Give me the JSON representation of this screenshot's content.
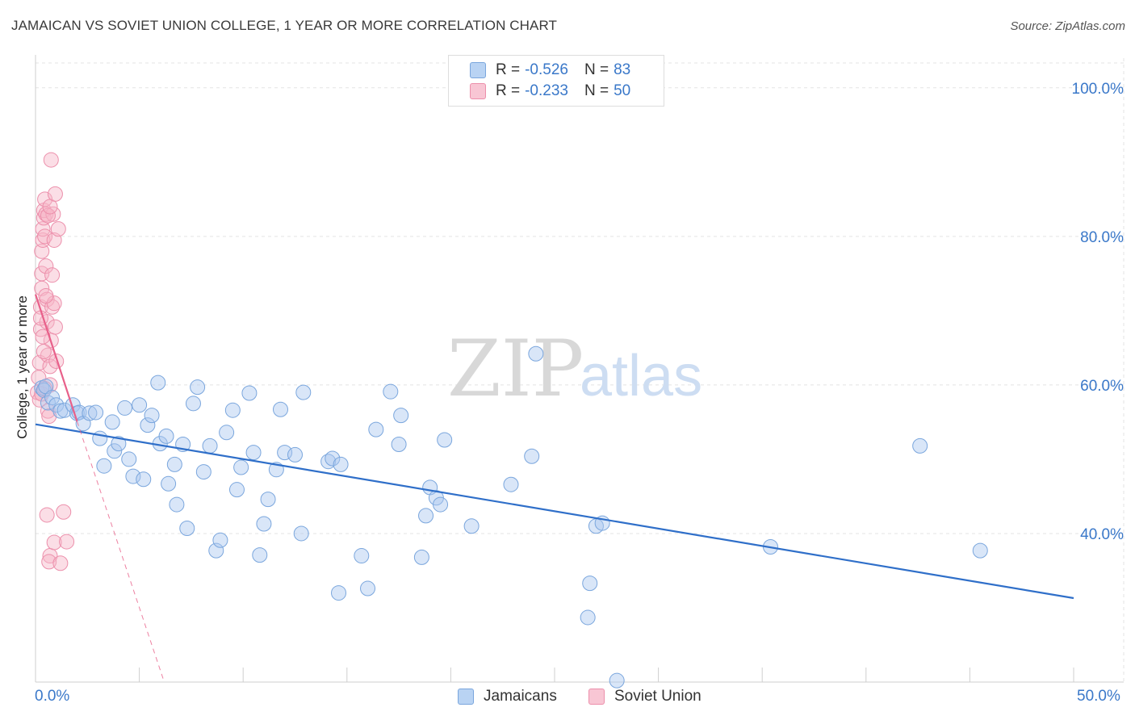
{
  "title": "JAMAICAN VS SOVIET UNION COLLEGE, 1 YEAR OR MORE CORRELATION CHART",
  "source": "Source: ZipAtlas.com",
  "watermark": {
    "zip": "ZIP",
    "atlas": "atlas"
  },
  "colors": {
    "blue_fill": "#aac8f0",
    "blue_stroke": "#7aa6dd",
    "blue_line": "#2f6fc9",
    "pink_fill": "#f6b6c8",
    "pink_stroke": "#ec8fab",
    "pink_line": "#e8608a",
    "grid": "#e3e3e3",
    "tick_text": "#3a78c9"
  },
  "legend_top": {
    "rows": [
      {
        "r_label": "R = ",
        "r_value": "-0.526",
        "n_label": "N = ",
        "n_value": "83"
      },
      {
        "r_label": "R = ",
        "r_value": "-0.233",
        "n_label": "N = ",
        "n_value": "50"
      }
    ]
  },
  "chart_data": {
    "type": "scatter",
    "title": "JAMAICAN VS SOVIET UNION COLLEGE, 1 YEAR OR MORE CORRELATION CHART",
    "xlabel": "",
    "ylabel": "College, 1 year or more",
    "xlim": [
      0,
      50
    ],
    "ylim": [
      20,
      104
    ],
    "x_tick_labels": [
      "0.0%",
      "50.0%"
    ],
    "y_ticks": [
      40,
      60,
      80,
      100
    ],
    "y_tick_labels": [
      "40.0%",
      "60.0%",
      "80.0%",
      "100.0%"
    ],
    "grid": true,
    "legend": [
      "Jamaicans",
      "Soviet Union"
    ],
    "series": [
      {
        "name": "Jamaicans",
        "R": -0.526,
        "N": 83,
        "trend": {
          "x": [
            0,
            50
          ],
          "y": [
            54.7,
            31.3
          ]
        },
        "points": [
          [
            0.3,
            59.6
          ],
          [
            0.4,
            59.3
          ],
          [
            0.5,
            59.8
          ],
          [
            0.6,
            57.6
          ],
          [
            0.8,
            58.3
          ],
          [
            1.0,
            57.3
          ],
          [
            1.2,
            56.5
          ],
          [
            1.4,
            56.6
          ],
          [
            1.8,
            57.3
          ],
          [
            2.0,
            56.2
          ],
          [
            2.1,
            56.3
          ],
          [
            2.3,
            54.8
          ],
          [
            2.6,
            56.2
          ],
          [
            2.9,
            56.3
          ],
          [
            3.1,
            52.8
          ],
          [
            3.3,
            49.1
          ],
          [
            3.7,
            55.0
          ],
          [
            3.8,
            51.1
          ],
          [
            4.0,
            52.1
          ],
          [
            4.3,
            56.9
          ],
          [
            4.5,
            50.0
          ],
          [
            4.7,
            47.7
          ],
          [
            5.0,
            57.3
          ],
          [
            5.2,
            47.3
          ],
          [
            5.4,
            54.6
          ],
          [
            5.6,
            55.9
          ],
          [
            5.9,
            60.3
          ],
          [
            6.0,
            52.1
          ],
          [
            6.3,
            53.1
          ],
          [
            6.4,
            46.7
          ],
          [
            6.7,
            49.3
          ],
          [
            6.8,
            43.9
          ],
          [
            7.1,
            52.0
          ],
          [
            7.3,
            40.7
          ],
          [
            7.6,
            57.5
          ],
          [
            7.8,
            59.7
          ],
          [
            8.1,
            48.3
          ],
          [
            8.4,
            51.8
          ],
          [
            8.7,
            37.7
          ],
          [
            8.9,
            39.1
          ],
          [
            9.2,
            53.6
          ],
          [
            9.5,
            56.6
          ],
          [
            9.7,
            45.9
          ],
          [
            9.9,
            48.9
          ],
          [
            10.3,
            58.9
          ],
          [
            10.5,
            50.9
          ],
          [
            10.8,
            37.1
          ],
          [
            11.0,
            41.3
          ],
          [
            11.2,
            44.6
          ],
          [
            11.6,
            48.6
          ],
          [
            11.8,
            56.7
          ],
          [
            12.0,
            50.9
          ],
          [
            12.5,
            50.6
          ],
          [
            12.8,
            40.0
          ],
          [
            12.9,
            59.0
          ],
          [
            14.1,
            49.7
          ],
          [
            14.3,
            50.1
          ],
          [
            14.6,
            32.0
          ],
          [
            14.7,
            49.3
          ],
          [
            15.7,
            37.0
          ],
          [
            16.0,
            32.6
          ],
          [
            16.4,
            54.0
          ],
          [
            17.1,
            59.1
          ],
          [
            17.5,
            52.0
          ],
          [
            17.6,
            55.9
          ],
          [
            18.6,
            36.8
          ],
          [
            18.8,
            42.4
          ],
          [
            19.0,
            46.2
          ],
          [
            19.3,
            44.8
          ],
          [
            19.5,
            43.9
          ],
          [
            19.7,
            52.6
          ],
          [
            21.0,
            41.0
          ],
          [
            22.9,
            46.6
          ],
          [
            23.9,
            50.4
          ],
          [
            24.1,
            64.2
          ],
          [
            26.6,
            28.7
          ],
          [
            26.7,
            33.3
          ],
          [
            27.0,
            41.0
          ],
          [
            27.3,
            41.4
          ],
          [
            28.0,
            20.2
          ],
          [
            35.4,
            38.2
          ],
          [
            42.6,
            51.8
          ],
          [
            45.5,
            37.7
          ]
        ]
      },
      {
        "name": "Soviet Union",
        "R": -0.233,
        "N": 50,
        "trend": {
          "x": [
            0,
            2.0
          ],
          "y": [
            72.2,
            55.1
          ]
        },
        "trend_dashed": {
          "x": [
            2.0,
            6.2
          ],
          "y": [
            55.1,
            20.0
          ]
        },
        "points": [
          [
            0.1,
            59.0
          ],
          [
            0.15,
            61.0
          ],
          [
            0.2,
            58.0
          ],
          [
            0.2,
            63.0
          ],
          [
            0.25,
            67.5
          ],
          [
            0.25,
            70.5
          ],
          [
            0.3,
            73.0
          ],
          [
            0.3,
            75.0
          ],
          [
            0.3,
            78.0
          ],
          [
            0.35,
            79.5
          ],
          [
            0.35,
            81.0
          ],
          [
            0.4,
            82.5
          ],
          [
            0.4,
            83.5
          ],
          [
            0.45,
            85.0
          ],
          [
            0.45,
            80.0
          ],
          [
            0.5,
            83.0
          ],
          [
            0.5,
            76.0
          ],
          [
            0.55,
            71.5
          ],
          [
            0.55,
            68.5
          ],
          [
            0.6,
            64.0
          ],
          [
            0.6,
            56.5
          ],
          [
            0.65,
            55.8
          ],
          [
            0.7,
            60.0
          ],
          [
            0.7,
            62.5
          ],
          [
            0.75,
            66.0
          ],
          [
            0.8,
            70.5
          ],
          [
            0.8,
            74.8
          ],
          [
            0.85,
            83.0
          ],
          [
            0.9,
            79.5
          ],
          [
            0.9,
            71.0
          ],
          [
            0.95,
            67.8
          ],
          [
            1.0,
            63.2
          ],
          [
            0.3,
            58.8
          ],
          [
            0.25,
            69.0
          ],
          [
            0.4,
            64.5
          ],
          [
            0.6,
            82.8
          ],
          [
            0.7,
            84.0
          ],
          [
            0.5,
            72.0
          ],
          [
            0.45,
            59.5
          ],
          [
            0.35,
            66.5
          ],
          [
            0.7,
            37.0
          ],
          [
            0.65,
            36.2
          ],
          [
            0.55,
            42.5
          ],
          [
            0.9,
            38.8
          ],
          [
            1.2,
            36.0
          ],
          [
            1.35,
            42.9
          ],
          [
            1.5,
            38.9
          ],
          [
            0.75,
            90.3
          ],
          [
            0.95,
            85.7
          ],
          [
            1.1,
            81.0
          ]
        ]
      }
    ]
  }
}
